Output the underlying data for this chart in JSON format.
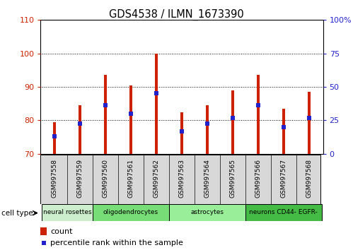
{
  "title": "GDS4538 / ILMN_1673390",
  "samples": [
    "GSM997558",
    "GSM997559",
    "GSM997560",
    "GSM997561",
    "GSM997562",
    "GSM997563",
    "GSM997564",
    "GSM997565",
    "GSM997566",
    "GSM997567",
    "GSM997568"
  ],
  "counts": [
    79.5,
    84.5,
    93.5,
    90.5,
    100.0,
    82.5,
    84.5,
    89.0,
    93.5,
    83.5,
    88.5
  ],
  "percentile_ranks_pct": [
    13.0,
    22.5,
    36.5,
    30.0,
    45.0,
    16.5,
    22.5,
    27.0,
    36.5,
    20.0,
    27.0
  ],
  "ylim_left": [
    70,
    110
  ],
  "ylim_right": [
    0,
    100
  ],
  "yticks_left": [
    70,
    80,
    90,
    100,
    110
  ],
  "yticks_right": [
    0,
    25,
    50,
    75,
    100
  ],
  "ytick_labels_right": [
    "0",
    "25",
    "50",
    "75",
    "100%"
  ],
  "bar_color": "#cc2200",
  "marker_color": "#2222cc",
  "bar_width": 0.12,
  "groups": [
    {
      "label": "neural rosettes",
      "start": 0,
      "end": 2,
      "color": "#cceecc"
    },
    {
      "label": "oligodendrocytes",
      "start": 2,
      "end": 5,
      "color": "#77dd77"
    },
    {
      "label": "astrocytes",
      "start": 5,
      "end": 8,
      "color": "#99ee99"
    },
    {
      "label": "neurons CD44- EGFR-",
      "start": 8,
      "end": 11,
      "color": "#44bb44"
    }
  ],
  "legend_count_color": "#cc2200",
  "legend_marker_color": "#2222cc",
  "bg_color": "#ffffff",
  "axis_left_color": "#cc2200",
  "axis_right_color": "#2222cc"
}
